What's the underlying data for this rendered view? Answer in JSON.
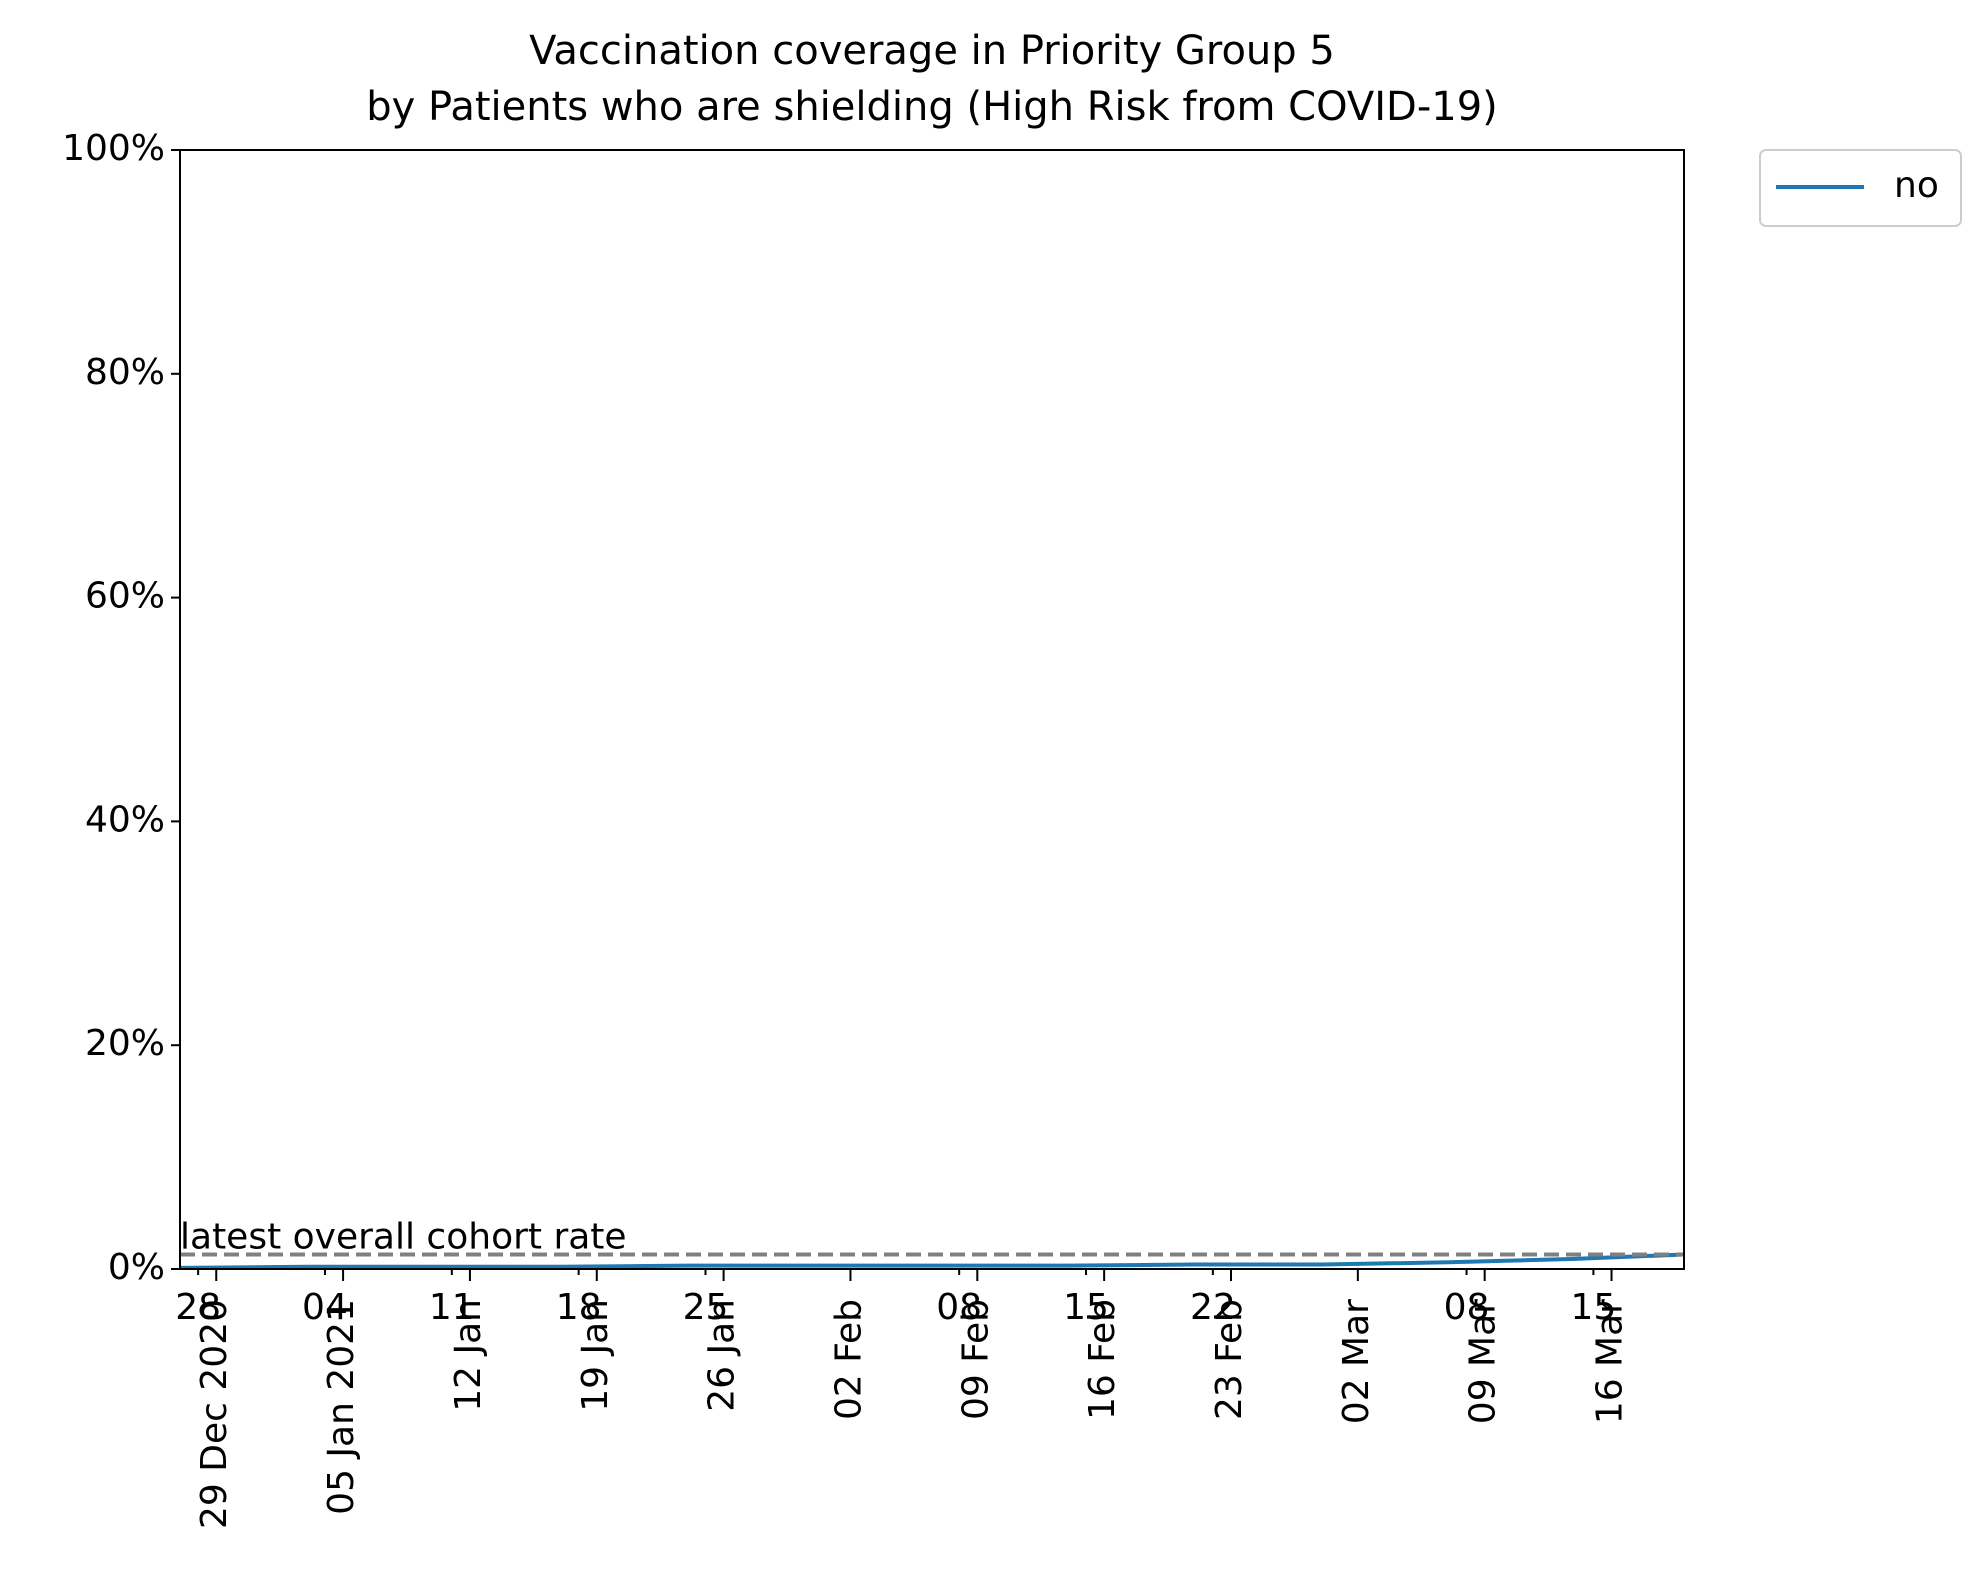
{
  "chart_data": {
    "type": "line",
    "title": [
      "Vaccination coverage in Priority Group 5",
      "by Patients who are shielding (High Risk from COVID-19)"
    ],
    "x": [
      "2020-12-27",
      "2021-01-03",
      "2021-01-10",
      "2021-01-17",
      "2021-01-24",
      "2021-01-31",
      "2021-02-07",
      "2021-02-14",
      "2021-02-21",
      "2021-02-28",
      "2021-03-07",
      "2021-03-14",
      "2021-03-20"
    ],
    "series": [
      {
        "name": "no",
        "color": "#1f77b4",
        "values": [
          0.1,
          0.2,
          0.2,
          0.2,
          0.3,
          0.3,
          0.3,
          0.3,
          0.4,
          0.4,
          0.6,
          0.9,
          1.3
        ]
      }
    ],
    "reference_line": {
      "value": 1.3,
      "label": "latest overall cohort rate",
      "color": "#808080"
    },
    "xlim": [
      "2020-12-27",
      "2021-03-20"
    ],
    "xticks": [
      {
        "value": "2020-12-29",
        "label": "29 Dec 2020"
      },
      {
        "value": "2021-01-05",
        "label": "05 Jan 2021"
      },
      {
        "value": "2021-01-12",
        "label": "12 Jan"
      },
      {
        "value": "2021-01-19",
        "label": "19 Jan"
      },
      {
        "value": "2021-01-26",
        "label": "26 Jan"
      },
      {
        "value": "2021-02-02",
        "label": "02 Feb"
      },
      {
        "value": "2021-02-09",
        "label": "09 Feb"
      },
      {
        "value": "2021-02-16",
        "label": "16 Feb"
      },
      {
        "value": "2021-02-23",
        "label": "23 Feb"
      },
      {
        "value": "2021-03-02",
        "label": "02 Mar"
      },
      {
        "value": "2021-03-09",
        "label": "09 Mar"
      },
      {
        "value": "2021-03-16",
        "label": "16 Mar"
      }
    ],
    "x_minor_ticks": [
      {
        "value": "2020-12-28",
        "label": "28"
      },
      {
        "value": "2021-01-04",
        "label": "04"
      },
      {
        "value": "2021-01-11",
        "label": "11"
      },
      {
        "value": "2021-01-18",
        "label": "18"
      },
      {
        "value": "2021-01-25",
        "label": "25"
      },
      {
        "value": "2021-02-08",
        "label": "08"
      },
      {
        "value": "2021-02-15",
        "label": "15"
      },
      {
        "value": "2021-02-22",
        "label": "22"
      },
      {
        "value": "2021-03-08",
        "label": "08"
      },
      {
        "value": "2021-03-15",
        "label": "15"
      }
    ],
    "ylim": [
      0,
      100
    ],
    "yticks": [
      {
        "value": 0,
        "label": "0%"
      },
      {
        "value": 20,
        "label": "20%"
      },
      {
        "value": 40,
        "label": "40%"
      },
      {
        "value": 60,
        "label": "60%"
      },
      {
        "value": 80,
        "label": "80%"
      },
      {
        "value": 100,
        "label": "100%"
      }
    ],
    "legend": "outside-upper-right"
  }
}
